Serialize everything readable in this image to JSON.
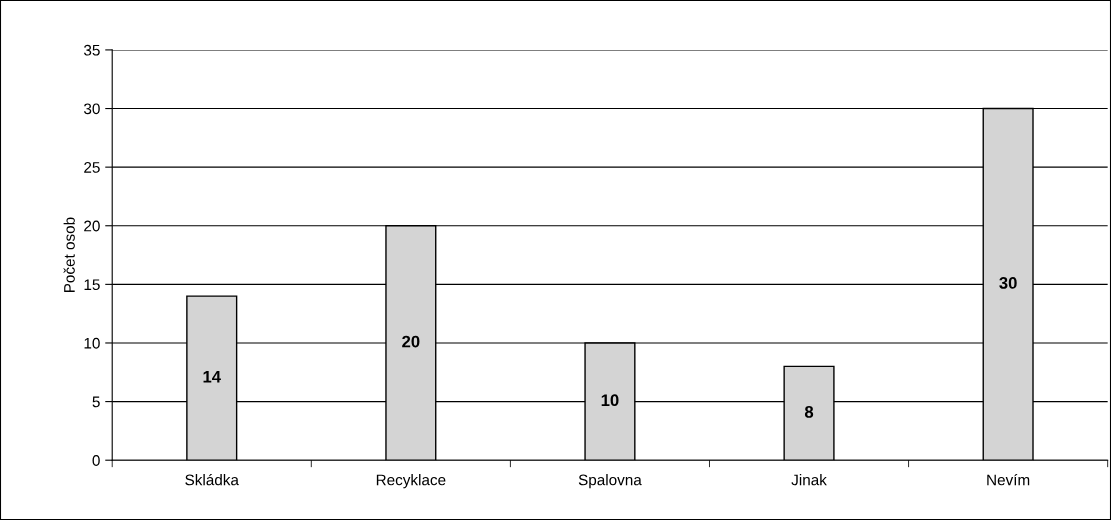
{
  "chart_data": {
    "type": "bar",
    "ylabel": "Počet osob",
    "categories": [
      "Skládka",
      "Recyklace",
      "Spalovna",
      "Jinak",
      "Nevím"
    ],
    "values": [
      14,
      20,
      10,
      8,
      30
    ],
    "color": "#d4d4d4",
    "ylim": [
      0,
      35
    ],
    "yticks": [
      0,
      5,
      10,
      15,
      20,
      25,
      30,
      35
    ],
    "grid": "y",
    "data_labels": true
  }
}
